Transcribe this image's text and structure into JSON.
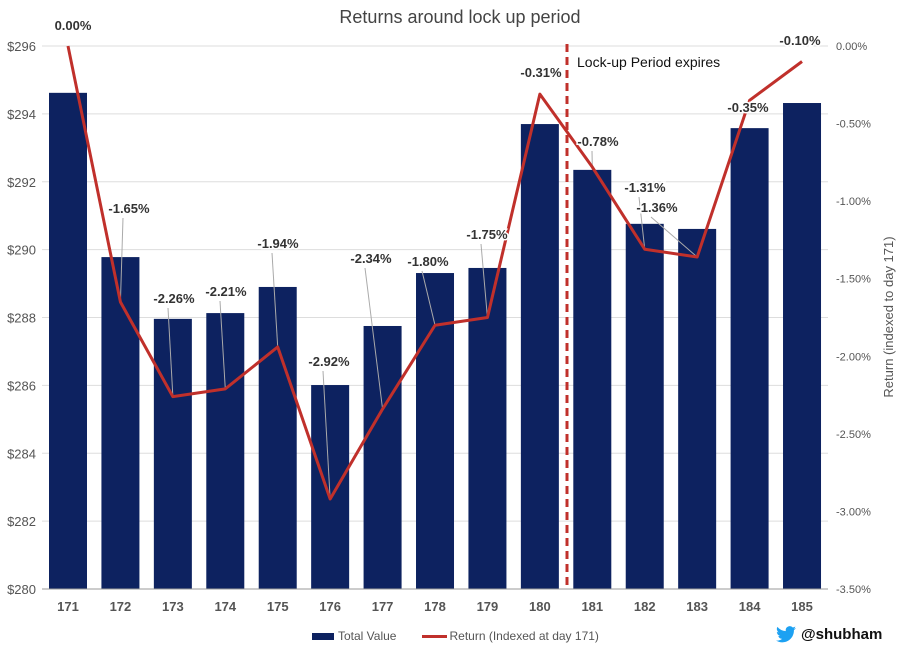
{
  "chart_data": {
    "type": "bar+line",
    "title": "Returns around lock up period",
    "categories": [
      "171",
      "172",
      "173",
      "174",
      "175",
      "176",
      "177",
      "178",
      "179",
      "180",
      "181",
      "182",
      "183",
      "184",
      "185"
    ],
    "series": [
      {
        "name": "Total Value",
        "type": "bar",
        "axis": "left",
        "values": [
          294.62,
          289.78,
          287.96,
          288.13,
          288.9,
          286.01,
          287.75,
          289.31,
          289.46,
          293.7,
          292.35,
          290.76,
          290.61,
          293.58,
          294.32
        ]
      },
      {
        "name": "Return (Indexed at day 171)",
        "type": "line",
        "axis": "right",
        "values": [
          0.0,
          -1.65,
          -2.26,
          -2.21,
          -1.94,
          -2.92,
          -2.34,
          -1.8,
          -1.75,
          -0.31,
          -0.78,
          -1.31,
          -1.36,
          -0.35,
          -0.1
        ],
        "labels": [
          "0.00%",
          "-1.65%",
          "-2.26%",
          "-2.21%",
          "-1.94%",
          "-2.92%",
          "-2.34%",
          "-1.80%",
          "-1.75%",
          "-0.31%",
          "-0.78%",
          "-1.31%",
          "-1.36%",
          "-0.35%",
          "-0.10%"
        ]
      }
    ],
    "left_axis": {
      "ylim": [
        280,
        296
      ],
      "ticks": [
        "$280",
        "$282",
        "$284",
        "$286",
        "$288",
        "$290",
        "$292",
        "$294",
        "$296"
      ]
    },
    "right_axis": {
      "label": "Return (indexed to day 171)",
      "ylim": [
        -3.5,
        0
      ],
      "ticks": [
        "-3.50%",
        "-3.00%",
        "-2.50%",
        "-2.00%",
        "-1.50%",
        "-1.00%",
        "-0.50%",
        "0.00%"
      ]
    },
    "annotation": {
      "text": "Lock-up Period expires",
      "between": [
        "180",
        "181"
      ]
    },
    "grid": true,
    "legend": "bottom",
    "colors": {
      "bar": "#0d2260",
      "line": "#c0302b"
    }
  },
  "watermark": {
    "icon": "twitter-bird-icon",
    "handle": "@shubham"
  }
}
